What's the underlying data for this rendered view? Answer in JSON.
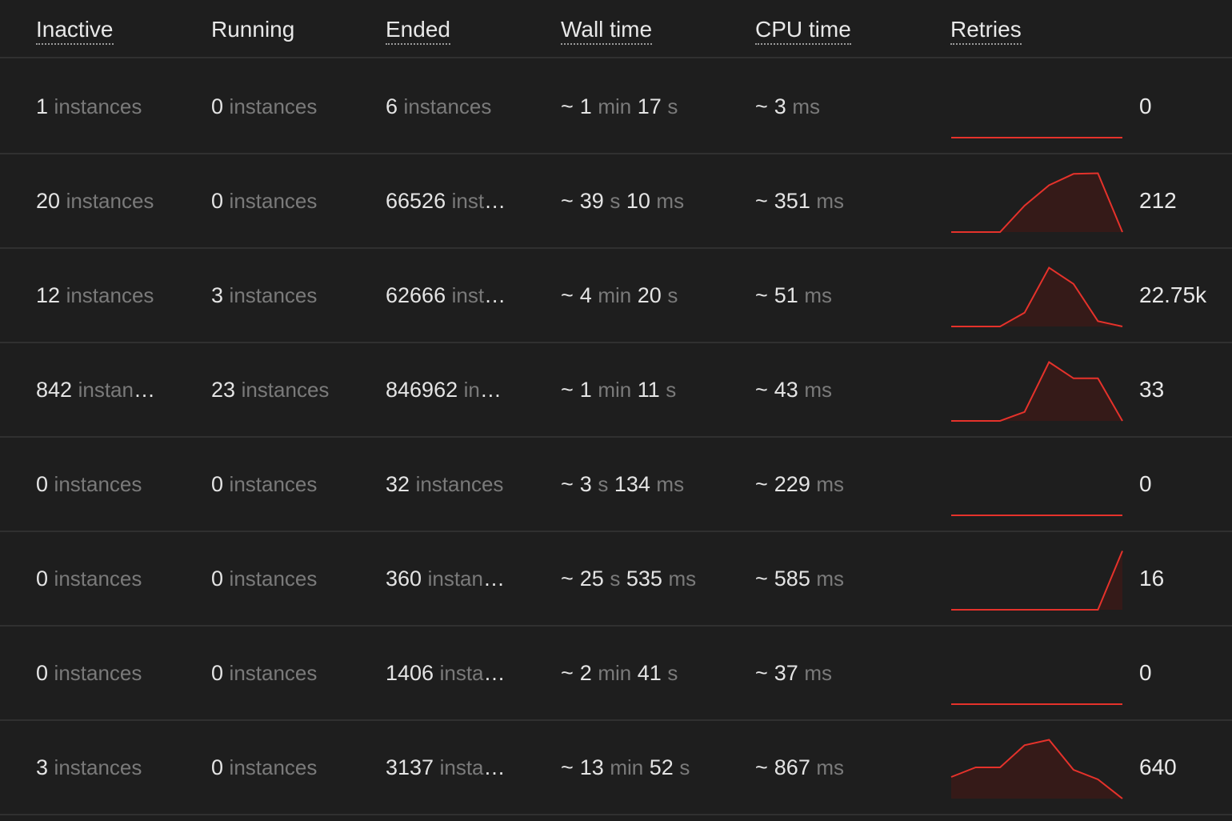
{
  "colors": {
    "background": "#1e1e1e",
    "divider": "#303030",
    "spark_line": "#e5322b",
    "spark_fill": "#3a1a18",
    "unit_text": "#7a7a7a"
  },
  "header": {
    "inactive": "Inactive",
    "running": "Running",
    "ended": "Ended",
    "wall_time": "Wall time",
    "cpu_time": "CPU time",
    "retries": "Retries"
  },
  "rows": [
    {
      "inactive": {
        "n": "1",
        "u": "instances"
      },
      "running": {
        "n": "0",
        "u": "instances"
      },
      "ended": {
        "n": "6",
        "u": "instances"
      },
      "wall": {
        "tilde": "~",
        "a": "1",
        "au": "min",
        "b": "17",
        "bu": "s"
      },
      "cpu": {
        "tilde": "~",
        "a": "3",
        "au": "ms"
      },
      "retries": "0",
      "spark": [
        0,
        0,
        0,
        0,
        0,
        0,
        0,
        0
      ]
    },
    {
      "inactive": {
        "n": "20",
        "u": "instances"
      },
      "running": {
        "n": "0",
        "u": "instances"
      },
      "ended": {
        "n": "66526",
        "u": "instances"
      },
      "wall": {
        "tilde": "~",
        "a": "39",
        "au": "s",
        "b": "10",
        "bu": "ms"
      },
      "cpu": {
        "tilde": "~",
        "a": "351",
        "au": "ms"
      },
      "retries": "212",
      "spark": [
        0,
        0,
        0,
        0.44,
        0.78,
        0.97,
        0.98,
        0
      ]
    },
    {
      "inactive": {
        "n": "12",
        "u": "instances"
      },
      "running": {
        "n": "3",
        "u": "instances"
      },
      "ended": {
        "n": "62666",
        "u": "instances"
      },
      "wall": {
        "tilde": "~",
        "a": "4",
        "au": "min",
        "b": "20",
        "bu": "s"
      },
      "cpu": {
        "tilde": "~",
        "a": "51",
        "au": "ms"
      },
      "retries": "22.75k",
      "spark": [
        0,
        0,
        0,
        0.23,
        0.98,
        0.71,
        0.09,
        0
      ]
    },
    {
      "inactive": {
        "n": "842",
        "u": "instances"
      },
      "running": {
        "n": "23",
        "u": "instances"
      },
      "ended": {
        "n": "846962",
        "u": "instances"
      },
      "wall": {
        "tilde": "~",
        "a": "1",
        "au": "min",
        "b": "11",
        "bu": "s"
      },
      "cpu": {
        "tilde": "~",
        "a": "43",
        "au": "ms"
      },
      "retries": "33",
      "spark": [
        0,
        0,
        0,
        0.15,
        0.98,
        0.71,
        0.71,
        0
      ]
    },
    {
      "inactive": {
        "n": "0",
        "u": "instances"
      },
      "running": {
        "n": "0",
        "u": "instances"
      },
      "ended": {
        "n": "32",
        "u": "instances"
      },
      "wall": {
        "tilde": "~",
        "a": "3",
        "au": "s",
        "b": "134",
        "bu": "ms"
      },
      "cpu": {
        "tilde": "~",
        "a": "229",
        "au": "ms"
      },
      "retries": "0",
      "spark": [
        0,
        0,
        0,
        0,
        0,
        0,
        0,
        0
      ]
    },
    {
      "inactive": {
        "n": "0",
        "u": "instances"
      },
      "running": {
        "n": "0",
        "u": "instances"
      },
      "ended": {
        "n": "360",
        "u": "instances"
      },
      "wall": {
        "tilde": "~",
        "a": "25",
        "au": "s",
        "b": "535",
        "bu": "ms"
      },
      "cpu": {
        "tilde": "~",
        "a": "585",
        "au": "ms"
      },
      "retries": "16",
      "spark": [
        0,
        0,
        0,
        0,
        0,
        0,
        0,
        0.98
      ]
    },
    {
      "inactive": {
        "n": "0",
        "u": "instances"
      },
      "running": {
        "n": "0",
        "u": "instances"
      },
      "ended": {
        "n": "1406",
        "u": "instances"
      },
      "wall": {
        "tilde": "~",
        "a": "2",
        "au": "min",
        "b": "41",
        "bu": "s"
      },
      "cpu": {
        "tilde": "~",
        "a": "37",
        "au": "ms"
      },
      "retries": "0",
      "spark": [
        0,
        0,
        0,
        0,
        0,
        0,
        0,
        0
      ]
    },
    {
      "inactive": {
        "n": "3",
        "u": "instances"
      },
      "running": {
        "n": "0",
        "u": "instances"
      },
      "ended": {
        "n": "3137",
        "u": "instances"
      },
      "wall": {
        "tilde": "~",
        "a": "13",
        "au": "min",
        "b": "52",
        "bu": "s"
      },
      "cpu": {
        "tilde": "~",
        "a": "867",
        "au": "ms"
      },
      "retries": "640",
      "spark": [
        0.36,
        0.52,
        0.52,
        0.89,
        0.98,
        0.48,
        0.32,
        0
      ]
    }
  ]
}
